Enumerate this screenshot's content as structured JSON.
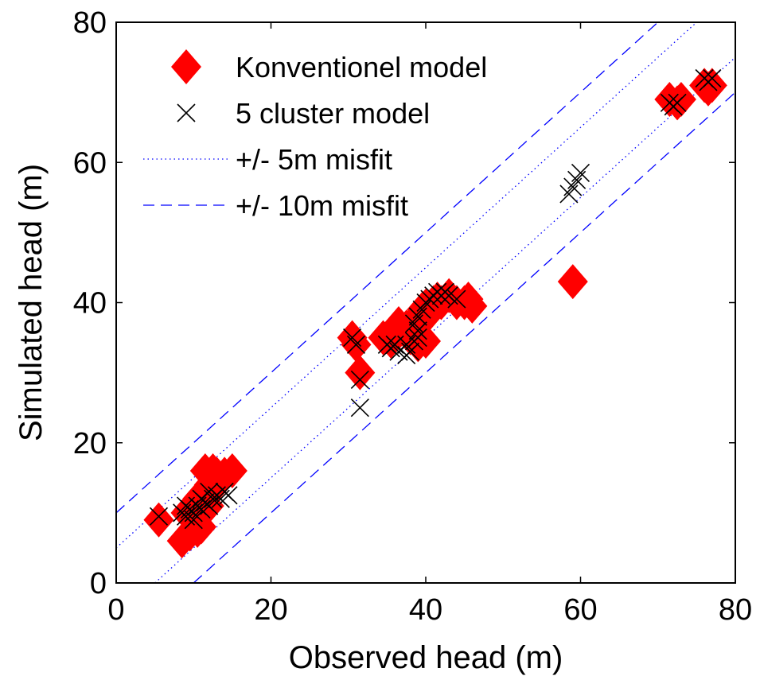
{
  "chart_data": {
    "type": "scatter",
    "xlabel": "Observed head (m)",
    "ylabel": "Simulated head (m)",
    "xlim": [
      0,
      80
    ],
    "ylim": [
      0,
      80
    ],
    "xticks": [
      0,
      20,
      40,
      60,
      80
    ],
    "yticks": [
      0,
      20,
      40,
      60,
      80
    ],
    "grid": false,
    "legend_position": "top-left",
    "series": [
      {
        "name": "Konventionel model",
        "marker": "diamond",
        "color": "#ff0000",
        "points": [
          [
            5.5,
            9
          ],
          [
            8.5,
            6
          ],
          [
            9.5,
            7
          ],
          [
            10.5,
            7.5
          ],
          [
            11,
            8
          ],
          [
            9,
            10
          ],
          [
            10,
            11
          ],
          [
            11,
            12
          ],
          [
            11.5,
            13
          ],
          [
            12,
            14
          ],
          [
            11.5,
            16
          ],
          [
            12.5,
            16
          ],
          [
            13,
            15.5
          ],
          [
            14,
            15.5
          ],
          [
            15,
            16
          ],
          [
            13,
            14
          ],
          [
            10.5,
            12
          ],
          [
            12,
            11
          ],
          [
            30.5,
            35
          ],
          [
            31,
            34
          ],
          [
            31.5,
            30
          ],
          [
            34.5,
            35
          ],
          [
            35.5,
            34.5
          ],
          [
            36,
            36
          ],
          [
            36.5,
            37
          ],
          [
            37.5,
            36.5
          ],
          [
            38,
            35
          ],
          [
            38.5,
            36.5
          ],
          [
            39,
            38
          ],
          [
            39.5,
            39
          ],
          [
            40,
            39.5
          ],
          [
            40.5,
            38.5
          ],
          [
            41,
            40
          ],
          [
            41.5,
            40.5
          ],
          [
            42,
            40
          ],
          [
            43,
            41
          ],
          [
            44,
            40
          ],
          [
            45,
            40
          ],
          [
            45.5,
            40.5
          ],
          [
            46,
            39.5
          ],
          [
            39,
            34
          ],
          [
            40,
            34.5
          ],
          [
            59,
            43
          ],
          [
            71.5,
            69
          ],
          [
            72.5,
            68.5
          ],
          [
            73,
            69
          ],
          [
            76,
            71
          ],
          [
            76.5,
            70.5
          ],
          [
            77,
            71
          ]
        ]
      },
      {
        "name": "5 cluster model",
        "marker": "x",
        "color": "#000000",
        "points": [
          [
            5.5,
            9.5
          ],
          [
            8.5,
            10
          ],
          [
            9,
            9.5
          ],
          [
            9.5,
            10.5
          ],
          [
            10,
            10
          ],
          [
            10.5,
            11
          ],
          [
            11,
            10.5
          ],
          [
            11.5,
            11.5
          ],
          [
            12,
            11
          ],
          [
            12.5,
            12
          ],
          [
            13,
            12.5
          ],
          [
            13.5,
            12
          ],
          [
            14,
            13
          ],
          [
            14.5,
            12.5
          ],
          [
            9,
            11
          ],
          [
            10,
            9
          ],
          [
            11,
            12
          ],
          [
            12,
            13
          ],
          [
            30.5,
            35
          ],
          [
            31,
            34
          ],
          [
            31.5,
            29
          ],
          [
            31.5,
            25
          ],
          [
            35,
            34
          ],
          [
            35.5,
            33.5
          ],
          [
            36,
            34
          ],
          [
            36.5,
            33
          ],
          [
            37.5,
            34
          ],
          [
            38,
            33
          ],
          [
            38.5,
            34.5
          ],
          [
            39,
            35
          ],
          [
            38.5,
            37
          ],
          [
            39,
            38
          ],
          [
            39.5,
            39
          ],
          [
            40,
            40
          ],
          [
            40.5,
            40.5
          ],
          [
            41,
            41
          ],
          [
            41.5,
            41.5
          ],
          [
            42,
            41
          ],
          [
            42.5,
            41.5
          ],
          [
            43,
            41
          ],
          [
            44,
            40.5
          ],
          [
            37.5,
            32.5
          ],
          [
            39,
            36
          ],
          [
            58.5,
            55.5
          ],
          [
            59,
            56.5
          ],
          [
            59.5,
            57.5
          ],
          [
            60,
            58.5
          ],
          [
            71.5,
            68.5
          ],
          [
            72,
            68
          ],
          [
            72.5,
            68.5
          ],
          [
            76,
            72
          ],
          [
            76.5,
            71.5
          ],
          [
            77,
            72
          ]
        ]
      },
      {
        "name": "+/- 5m misfit",
        "style": "dotted",
        "color": "#0000ff",
        "lines": [
          [
            [
              0,
              5
            ],
            [
              75,
              80
            ]
          ],
          [
            [
              5,
              0
            ],
            [
              80,
              75
            ]
          ]
        ]
      },
      {
        "name": "+/- 10m misfit",
        "style": "dashed",
        "color": "#0000ff",
        "lines": [
          [
            [
              0,
              10
            ],
            [
              70,
              80
            ]
          ],
          [
            [
              10,
              0
            ],
            [
              80,
              70
            ]
          ]
        ]
      }
    ]
  }
}
